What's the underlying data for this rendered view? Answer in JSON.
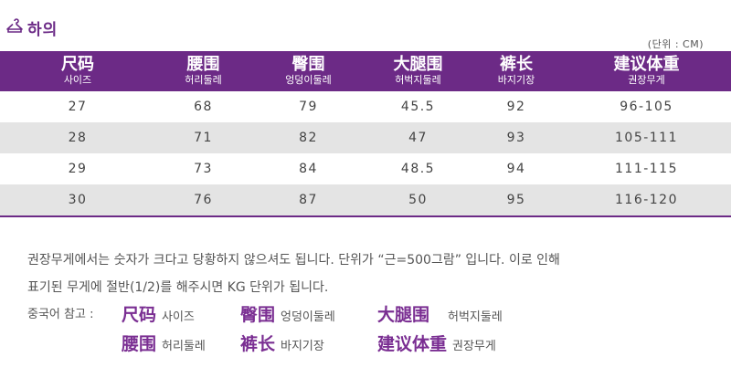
{
  "header": {
    "title": "하의",
    "icon": "hanger-icon",
    "unit": "(단위 : CM)"
  },
  "colors": {
    "brand": "#6c2a86",
    "row_alt": "#e4e4e4"
  },
  "table": {
    "columns": [
      {
        "zh": "尺码",
        "ko": "사이즈"
      },
      {
        "zh": "腰围",
        "ko": "허리둘레"
      },
      {
        "zh": "臀围",
        "ko": "엉덩이둘레"
      },
      {
        "zh": "大腿围",
        "ko": "허벅지둘레"
      },
      {
        "zh": "裤长",
        "ko": "바지기장"
      },
      {
        "zh": "建议体重",
        "ko": "권장무게"
      }
    ],
    "rows": [
      [
        "27",
        "68",
        "79",
        "45.5",
        "92",
        "96-105"
      ],
      [
        "28",
        "71",
        "82",
        "47",
        "93",
        "105-111"
      ],
      [
        "29",
        "73",
        "84",
        "48.5",
        "94",
        "111-115"
      ],
      [
        "30",
        "76",
        "87",
        "50",
        "95",
        "116-120"
      ]
    ]
  },
  "notes": {
    "line1": "권장무게에서는 숫자가 크다고 당황하지 않으셔도 됩니다. 단위가 “근=500그람” 입니다. 이로 인해",
    "line2": "표기된 무게에 절반(1/2)를 해주시면 KG 단위가 됩니다.",
    "ref_label": "중국어 참고 :",
    "refs": [
      {
        "zh": "尺码",
        "ko": "사이즈"
      },
      {
        "zh": "臀围",
        "ko": "엉덩이둘레"
      },
      {
        "zh": "大腿围",
        "ko": "허벅지둘레"
      },
      {
        "zh": "腰围",
        "ko": "허리둘레"
      },
      {
        "zh": "裤长",
        "ko": "바지기장"
      },
      {
        "zh": "建议体重",
        "ko": "권장무게"
      }
    ]
  }
}
